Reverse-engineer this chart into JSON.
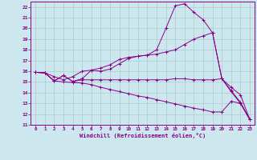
{
  "xlabel": "Windchill (Refroidissement éolien,°C)",
  "bg_color": "#cce8ee",
  "grid_color": "#aacccc",
  "line_color": "#880088",
  "spine_color": "#880088",
  "xlim": [
    -0.5,
    23.5
  ],
  "ylim": [
    11,
    22.5
  ],
  "yticks": [
    11,
    12,
    13,
    14,
    15,
    16,
    17,
    18,
    19,
    20,
    21,
    22
  ],
  "xticks": [
    0,
    1,
    2,
    3,
    4,
    5,
    6,
    7,
    8,
    9,
    10,
    11,
    12,
    13,
    14,
    15,
    16,
    17,
    18,
    19,
    20,
    21,
    22,
    23
  ],
  "xtick_labels": [
    "0",
    "1",
    "2",
    "3",
    "4",
    "5",
    "6",
    "7",
    "8",
    "9",
    "10",
    "11",
    "12",
    "13",
    "14",
    "15",
    "16",
    "17",
    "18",
    "19",
    "20",
    "21",
    "22",
    "23"
  ],
  "series": [
    {
      "x": [
        0,
        1,
        2,
        3,
        4,
        5,
        6,
        7,
        8,
        9,
        10,
        11,
        12,
        13,
        14,
        15,
        16,
        17,
        18,
        19,
        20,
        21,
        22,
        23
      ],
      "y": [
        15.9,
        15.85,
        15.1,
        15.6,
        15.05,
        15.3,
        16.1,
        16.0,
        16.2,
        16.7,
        17.2,
        17.4,
        17.5,
        18.0,
        20.0,
        22.1,
        22.3,
        21.5,
        20.8,
        19.6,
        15.3,
        14.1,
        13.0,
        11.5
      ]
    },
    {
      "x": [
        0,
        1,
        2,
        3,
        4,
        5,
        6,
        7,
        8,
        9,
        10,
        11,
        12,
        13,
        14,
        15,
        16,
        17,
        18,
        19,
        20,
        21,
        22,
        23
      ],
      "y": [
        15.9,
        15.85,
        15.5,
        15.2,
        15.5,
        16.0,
        16.1,
        16.3,
        16.6,
        17.1,
        17.3,
        17.4,
        17.5,
        17.6,
        17.8,
        18.0,
        18.5,
        19.0,
        19.3,
        19.6,
        15.3,
        14.2,
        13.1,
        11.5
      ]
    },
    {
      "x": [
        0,
        1,
        2,
        3,
        4,
        5,
        6,
        7,
        8,
        9,
        10,
        11,
        12,
        13,
        14,
        15,
        16,
        17,
        18,
        19,
        20,
        21,
        22,
        23
      ],
      "y": [
        15.9,
        15.85,
        15.1,
        15.6,
        15.05,
        15.2,
        15.2,
        15.2,
        15.2,
        15.2,
        15.2,
        15.2,
        15.2,
        15.2,
        15.2,
        15.3,
        15.3,
        15.2,
        15.2,
        15.2,
        15.3,
        14.5,
        13.8,
        11.5
      ]
    },
    {
      "x": [
        0,
        1,
        2,
        3,
        4,
        5,
        6,
        7,
        8,
        9,
        10,
        11,
        12,
        13,
        14,
        15,
        16,
        17,
        18,
        19,
        20,
        21,
        22,
        23
      ],
      "y": [
        15.9,
        15.85,
        15.1,
        15.0,
        14.95,
        14.9,
        14.75,
        14.5,
        14.3,
        14.1,
        13.9,
        13.7,
        13.55,
        13.35,
        13.15,
        12.95,
        12.75,
        12.55,
        12.4,
        12.2,
        12.2,
        13.2,
        13.0,
        11.5
      ]
    }
  ]
}
